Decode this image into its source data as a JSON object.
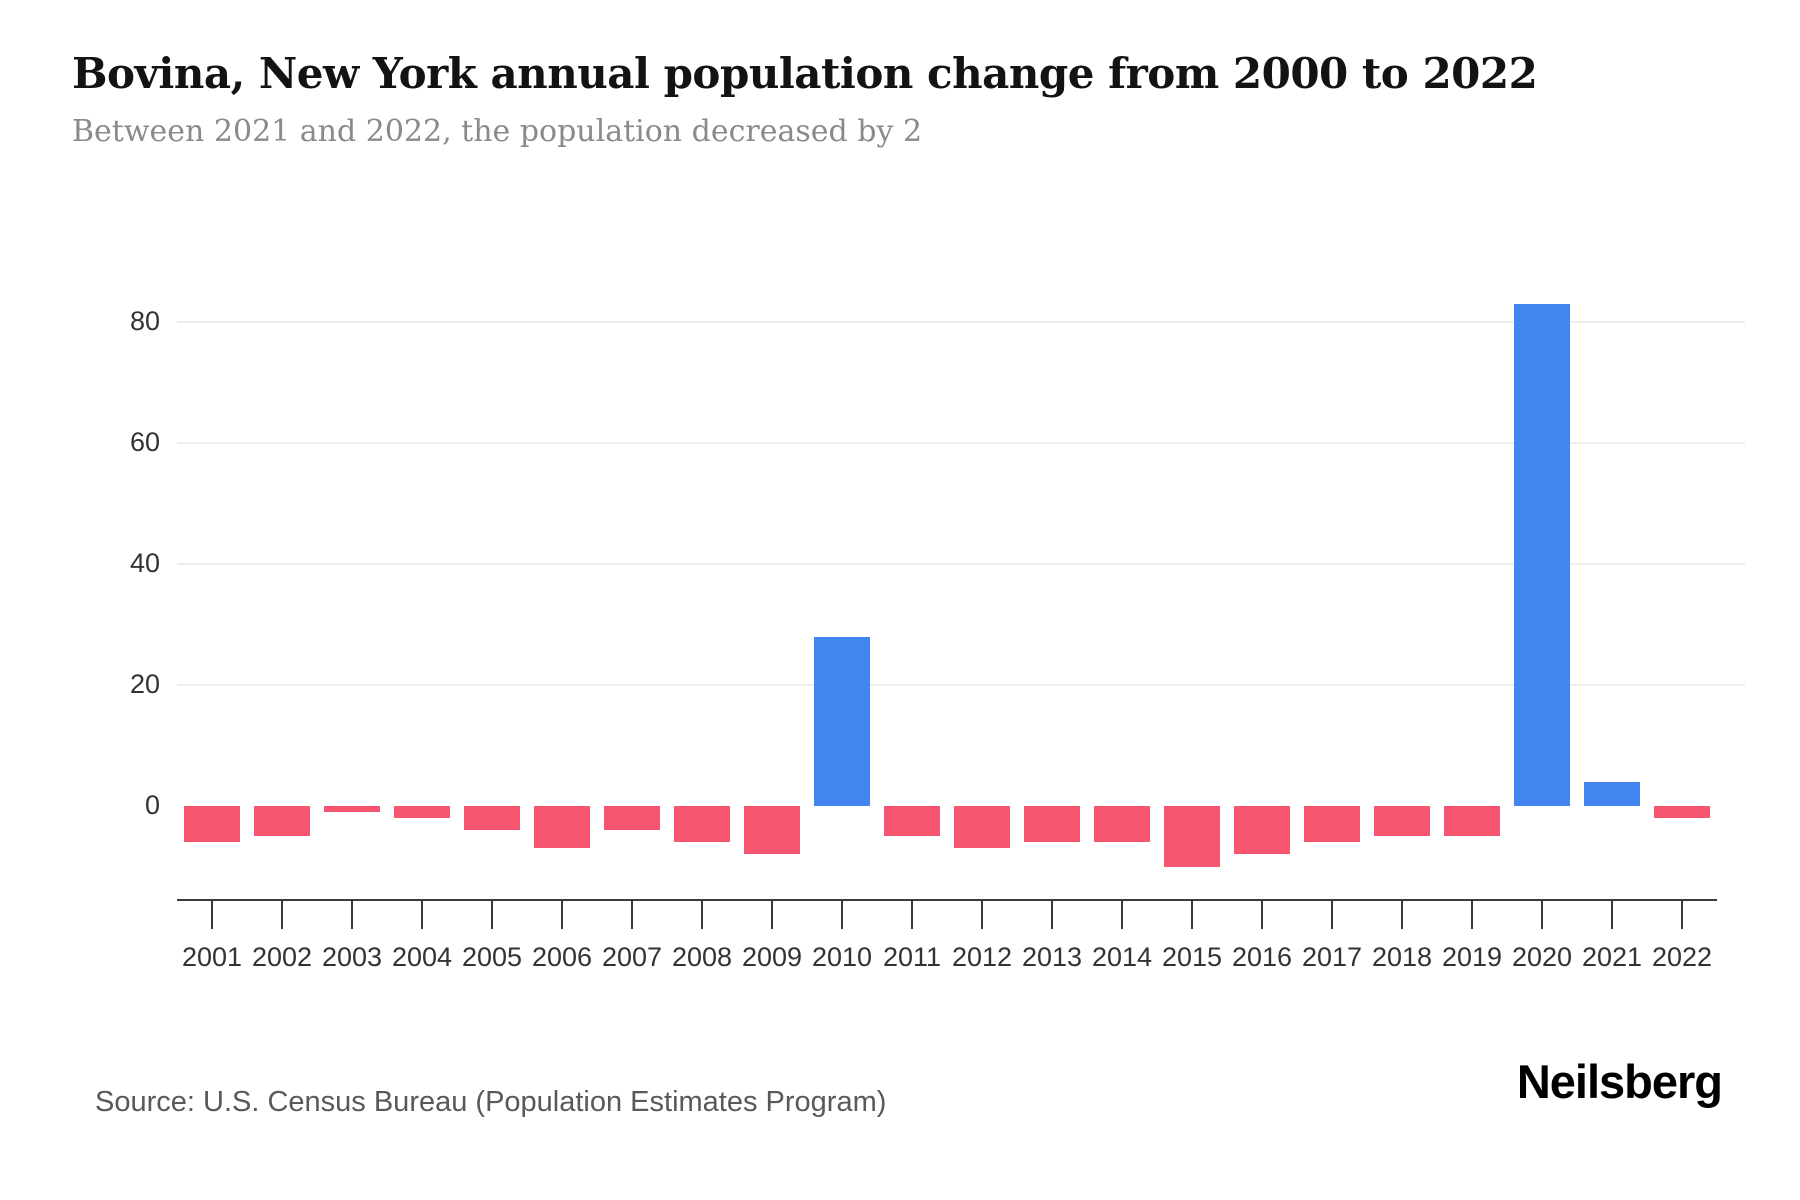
{
  "header": {
    "title": "Bovina, New York annual population change from 2000 to 2022",
    "subtitle": "Between 2021 and 2022, the population decreased by 2"
  },
  "chart_data": {
    "type": "bar",
    "title": "Bovina, New York annual population change from 2000 to 2022",
    "subtitle": "Between 2021 and 2022, the population decreased by 2",
    "categories": [
      "2001",
      "2002",
      "2003",
      "2004",
      "2005",
      "2006",
      "2007",
      "2008",
      "2009",
      "2010",
      "2011",
      "2012",
      "2013",
      "2014",
      "2015",
      "2016",
      "2017",
      "2018",
      "2019",
      "2020",
      "2021",
      "2022"
    ],
    "values": [
      -6,
      -5,
      -1,
      -2,
      -4,
      -7,
      -4,
      -6,
      -8,
      28,
      -5,
      -7,
      -6,
      -6,
      -10,
      -8,
      -6,
      -5,
      -5,
      83,
      4,
      -2
    ],
    "xlabel": "",
    "ylabel": "",
    "yticks": [
      0,
      20,
      40,
      60,
      80
    ],
    "ylim": [
      -12,
      88
    ],
    "grid": "horizontal-light, no line at 0",
    "legend": "none",
    "colors": {
      "positive_bar": "#4285F0",
      "negative_bar": "#F85570",
      "gridline": "#EDEDED",
      "axis": "#3A3A3A",
      "tick_label": "#333333"
    }
  },
  "footer": {
    "source": "Source: U.S. Census Bureau (Population Estimates Program)",
    "logo_text": "Neilsberg"
  }
}
